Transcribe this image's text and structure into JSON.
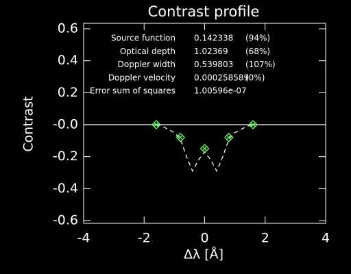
{
  "chart_data": {
    "type": "line",
    "title": "Contrast profile",
    "xlabel": "Δλ [Å]",
    "ylabel": "Contrast",
    "xlim": [
      -4,
      4
    ],
    "xticks": [
      -4,
      -2,
      0,
      2,
      4
    ],
    "ylim": [
      -0.6,
      0.6
    ],
    "yticks": [
      0.6,
      0.4,
      0.2,
      {
        "value": 0,
        "label": "-0.0"
      },
      -0.2,
      -0.4,
      -0.6
    ],
    "hline": 0,
    "axis_color": "#ffffff",
    "background": "#000000",
    "series": [
      {
        "color": "#ffffff",
        "style": "dashed",
        "x": [
          -1.6,
          -1.4,
          -1.2,
          -1.0,
          -0.8,
          -0.6,
          -0.4,
          -0.2,
          0,
          0.2,
          0.4,
          0.6,
          0.8,
          1.0,
          1.2,
          1.4,
          1.6
        ],
        "values": [
          0,
          -0.01,
          -0.03,
          -0.05,
          -0.09,
          -0.2,
          -0.29,
          -0.22,
          -0.17,
          -0.22,
          -0.29,
          -0.2,
          -0.09,
          -0.05,
          -0.03,
          -0.01,
          0
        ]
      },
      {
        "color": "#66ff66",
        "style": "diamond",
        "x": [
          -1.6,
          -0.8,
          0,
          0.8,
          1.6
        ],
        "values": [
          0,
          -0.08,
          -0.15,
          -0.08,
          0
        ]
      }
    ],
    "annotations": [
      [
        "Source function",
        "0.142338",
        "(94%)"
      ],
      [
        "Optical depth",
        "1.02369",
        "(68%)"
      ],
      [
        "Doppler width",
        "0.539803",
        "(107%)"
      ],
      [
        "Doppler velocity",
        "0.000258589",
        "(0%)"
      ],
      [
        "Error sum of squares",
        "1.00596e-07"
      ]
    ]
  }
}
